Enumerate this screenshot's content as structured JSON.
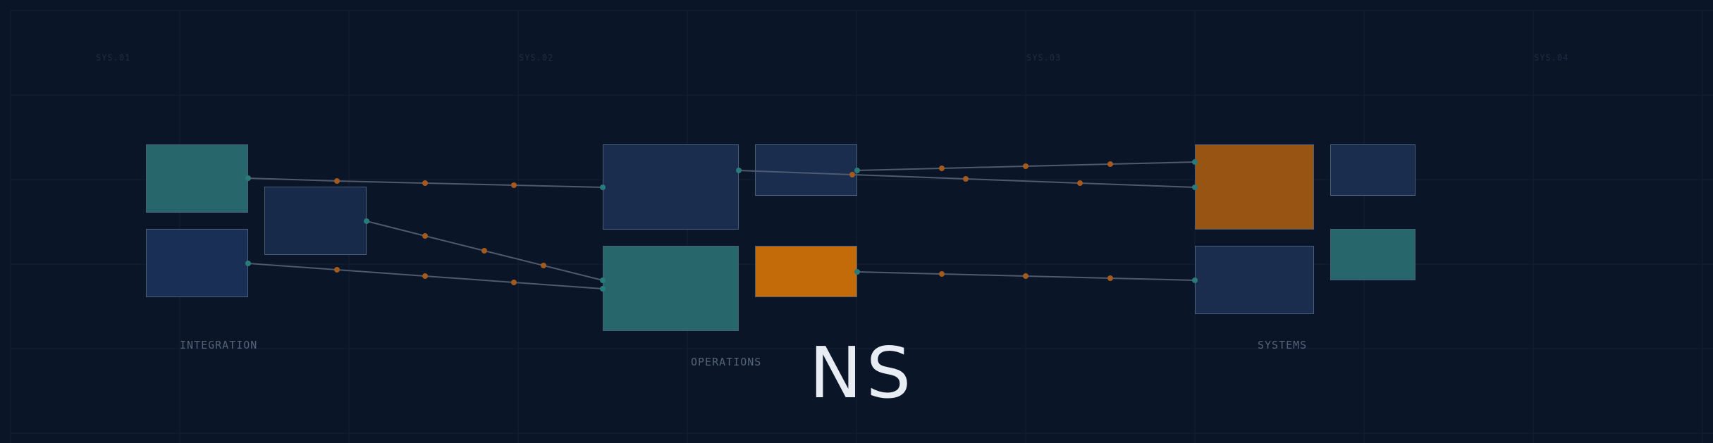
{
  "colors": {
    "background": "#0b1528",
    "grid": "#141f35",
    "navy_node": "#1a2d4f",
    "teal_node": "#27666b",
    "orange_node": "#c36b09",
    "amber_node": "#975413",
    "node_border": "#4c5d7a",
    "connector": "#4e5a6e",
    "endpoint_dot": "#2a7a7a",
    "waypoint_dot": "#a35a1c"
  },
  "sys_labels": [
    "SYS.01",
    "SYS.02",
    "SYS.03",
    "SYS.04"
  ],
  "group_labels": {
    "integration": "INTEGRATION",
    "operations": "OPERATIONS",
    "systems": "SYSTEMS"
  },
  "brand": "NS"
}
